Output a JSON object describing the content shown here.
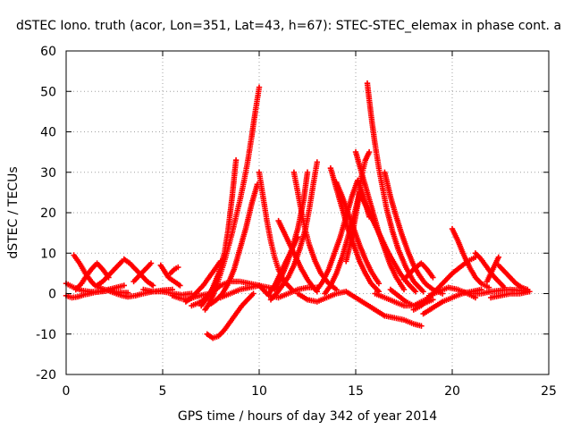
{
  "chart_data": {
    "type": "scatter",
    "title": "dSTEC Iono. truth (acor, Lon=351, Lat=43, h=67): STEC-STEC_elemax in phase cont. a",
    "xlabel": "GPS time / hours of day 342 of year 2014",
    "ylabel": "dSTEC  / TECUs",
    "xlim": [
      0,
      25
    ],
    "ylim": [
      -20,
      60
    ],
    "xticks": [
      0,
      5,
      10,
      15,
      20,
      25
    ],
    "yticks": [
      -20,
      -10,
      0,
      10,
      20,
      30,
      40,
      50,
      60
    ],
    "grid": true,
    "marker": "+",
    "color": "#ff0000",
    "series": [
      {
        "x": [
          0.0,
          0.4,
          0.8,
          1.2,
          1.6,
          2.0,
          2.4
        ],
        "y": [
          2.5,
          1.5,
          0.8,
          0.5,
          0.4,
          0.6,
          1.0
        ]
      },
      {
        "x": [
          0.0,
          0.3,
          0.6,
          1.0,
          1.5,
          2.0,
          2.6,
          3.0
        ],
        "y": [
          -0.5,
          -1.0,
          -0.8,
          -0.2,
          0.3,
          0.8,
          1.5,
          2.0
        ]
      },
      {
        "x": [
          0.4,
          0.7,
          1.0,
          1.3,
          1.5,
          1.7,
          2.0,
          2.4,
          2.8,
          3.2
        ],
        "y": [
          9.5,
          7.5,
          5.0,
          3.0,
          2.0,
          1.5,
          1.0,
          0.5,
          0.3,
          0.2
        ]
      },
      {
        "x": [
          0.5,
          0.8,
          1.0,
          1.3,
          1.6,
          1.9,
          2.2
        ],
        "y": [
          1.0,
          2.5,
          4.0,
          6.0,
          7.5,
          6.0,
          4.0
        ]
      },
      {
        "x": [
          1.6,
          1.9,
          2.2,
          2.5,
          2.7,
          2.9
        ],
        "y": [
          2.0,
          3.0,
          4.5,
          6.0,
          7.0,
          8.0
        ]
      },
      {
        "x": [
          2.3,
          2.6,
          2.9,
          3.2,
          3.6,
          4.0,
          4.5,
          5.0,
          5.5
        ],
        "y": [
          0.5,
          0.0,
          -0.5,
          -0.8,
          -0.5,
          0.0,
          0.5,
          0.8,
          1.0
        ]
      },
      {
        "x": [
          3.0,
          3.3,
          3.6,
          3.9,
          4.2,
          4.5
        ],
        "y": [
          8.5,
          7.5,
          6.0,
          4.5,
          3.0,
          2.0
        ]
      },
      {
        "x": [
          3.5,
          3.8,
          4.1,
          4.4
        ],
        "y": [
          3.0,
          4.5,
          6.0,
          7.5
        ]
      },
      {
        "x": [
          4.0,
          4.5,
          5.0,
          5.5,
          6.0,
          6.5
        ],
        "y": [
          1.0,
          0.5,
          0.5,
          0.0,
          -0.3,
          0.0
        ]
      },
      {
        "x": [
          4.9,
          5.1,
          5.3,
          5.6,
          5.9
        ],
        "y": [
          7.0,
          5.5,
          4.0,
          3.0,
          2.0
        ]
      },
      {
        "x": [
          5.4,
          5.6,
          5.8
        ],
        "y": [
          5.0,
          6.0,
          6.5
        ]
      },
      {
        "x": [
          5.5,
          5.9,
          6.3,
          6.7,
          7.1,
          7.5
        ],
        "y": [
          -0.5,
          -1.2,
          -1.5,
          -0.8,
          -0.3,
          0.0
        ]
      },
      {
        "x": [
          6.2,
          6.5,
          6.8,
          7.1,
          7.4,
          7.7,
          8.0
        ],
        "y": [
          -2.0,
          -1.0,
          0.5,
          2.0,
          4.0,
          6.0,
          8.0
        ]
      },
      {
        "x": [
          6.5,
          7.0,
          7.5,
          8.0,
          8.5,
          9.0,
          9.5,
          10.0
        ],
        "y": [
          -3.0,
          -2.0,
          0.0,
          2.0,
          3.0,
          3.0,
          2.5,
          2.0
        ]
      },
      {
        "x": [
          7.2,
          7.4,
          7.6,
          7.8,
          8.0,
          8.2,
          8.4,
          8.6,
          8.8,
          9.0,
          9.2,
          9.4,
          9.6,
          9.8,
          10.0
        ],
        "y": [
          -4.0,
          -2.5,
          -0.5,
          2.0,
          5.0,
          8.0,
          11.5,
          15.0,
          19.0,
          23.0,
          27.5,
          32.5,
          38.5,
          45.0,
          51.0
        ]
      },
      {
        "x": [
          7.0,
          7.3,
          7.6,
          7.9,
          8.2,
          8.4,
          8.6,
          8.8
        ],
        "y": [
          -3.0,
          -1.0,
          1.5,
          5.0,
          10.0,
          16.0,
          24.0,
          33.0
        ]
      },
      {
        "x": [
          7.5,
          7.8,
          8.1,
          8.4,
          8.7,
          9.0,
          9.3,
          9.6,
          9.9
        ],
        "y": [
          -2.5,
          -1.5,
          0.0,
          2.5,
          6.0,
          11.0,
          16.0,
          22.0,
          27.0
        ]
      },
      {
        "x": [
          7.3,
          7.6,
          7.9,
          8.2,
          8.5,
          8.8,
          9.1,
          9.4,
          9.7
        ],
        "y": [
          -10.0,
          -11.0,
          -10.5,
          -9.0,
          -7.0,
          -5.0,
          -3.0,
          -1.5,
          0.0
        ]
      },
      {
        "x": [
          8.0,
          8.5,
          9.0,
          9.5,
          10.0,
          10.5,
          11.0
        ],
        "y": [
          -1.0,
          0.0,
          1.0,
          1.5,
          2.0,
          1.5,
          1.0
        ]
      },
      {
        "x": [
          10.0,
          10.2,
          10.4,
          10.6,
          10.8,
          11.0,
          11.3,
          11.7
        ],
        "y": [
          30.0,
          24.0,
          18.0,
          13.0,
          9.0,
          6.0,
          3.0,
          1.0
        ]
      },
      {
        "x": [
          10.0,
          10.5,
          11.0,
          11.5,
          12.0,
          12.5,
          13.0
        ],
        "y": [
          2.0,
          -0.5,
          -1.0,
          0.0,
          1.0,
          1.5,
          1.5
        ]
      },
      {
        "x": [
          10.5,
          10.8,
          11.1,
          11.4,
          11.7,
          12.0
        ],
        "y": [
          0.0,
          2.0,
          5.0,
          8.0,
          11.0,
          14.0
        ]
      },
      {
        "x": [
          11.0,
          11.3,
          11.6,
          11.9,
          12.2,
          12.5,
          12.8,
          13.0
        ],
        "y": [
          18.0,
          15.0,
          12.0,
          9.0,
          6.0,
          3.5,
          1.5,
          0.5
        ]
      },
      {
        "x": [
          10.6,
          10.9,
          11.2,
          11.5,
          11.8,
          12.1,
          12.4,
          12.6,
          12.8,
          13.0
        ],
        "y": [
          -1.5,
          0.0,
          2.0,
          4.0,
          7.0,
          11.0,
          16.0,
          21.0,
          27.0,
          32.5
        ]
      },
      {
        "x": [
          10.8,
          11.1,
          11.4,
          11.7,
          12.0,
          12.3,
          12.5
        ],
        "y": [
          1.0,
          3.5,
          7.0,
          11.0,
          16.0,
          23.0,
          30.0
        ]
      },
      {
        "x": [
          11.8,
          12.0,
          12.2,
          12.4,
          12.6,
          12.9,
          13.2,
          13.6,
          14.0
        ],
        "y": [
          30.0,
          25.0,
          20.0,
          15.5,
          12.0,
          8.0,
          5.0,
          2.5,
          1.0
        ]
      },
      {
        "x": [
          12.0,
          12.5,
          13.0,
          13.5,
          14.0,
          14.5,
          15.0,
          15.5,
          16.0,
          16.5,
          17.0,
          17.5,
          18.0,
          18.4
        ],
        "y": [
          0.0,
          -1.5,
          -2.0,
          -1.0,
          0.0,
          0.5,
          -1.0,
          -2.5,
          -4.0,
          -5.5,
          -6.0,
          -6.5,
          -7.5,
          -8.0
        ]
      },
      {
        "x": [
          13.0,
          13.3,
          13.6,
          13.9,
          14.2,
          14.5,
          14.8,
          15.1,
          15.4,
          15.7
        ],
        "y": [
          1.0,
          3.0,
          6.0,
          10.0,
          14.0,
          19.0,
          24.0,
          28.0,
          24.0,
          19.0
        ]
      },
      {
        "x": [
          13.4,
          13.7,
          14.0,
          14.3,
          14.6,
          14.9,
          15.2,
          15.5
        ],
        "y": [
          0.0,
          2.0,
          5.0,
          9.0,
          14.0,
          19.0,
          25.0,
          22.0
        ]
      },
      {
        "x": [
          13.7,
          14.0,
          14.3,
          14.6,
          14.9,
          15.2,
          15.5,
          15.8,
          16.2
        ],
        "y": [
          31.0,
          26.0,
          21.0,
          16.0,
          12.0,
          8.0,
          5.0,
          2.5,
          0.5
        ]
      },
      {
        "x": [
          14.0,
          14.3,
          14.6,
          14.9,
          15.2,
          15.5,
          15.8,
          16.2
        ],
        "y": [
          27.5,
          24.0,
          20.0,
          16.0,
          12.0,
          8.5,
          5.5,
          2.5
        ]
      },
      {
        "x": [
          14.5,
          14.8,
          15.1,
          15.3,
          15.5,
          15.7
        ],
        "y": [
          8.0,
          14.0,
          22.0,
          29.0,
          33.0,
          35.0
        ]
      },
      {
        "x": [
          15.0,
          15.3,
          15.6,
          15.9,
          16.2,
          16.5,
          16.8,
          17.1,
          17.5
        ],
        "y": [
          35.0,
          30.0,
          25.0,
          20.0,
          15.0,
          11.0,
          7.0,
          4.0,
          1.0
        ]
      },
      {
        "x": [
          15.6,
          15.8,
          16.0,
          16.2,
          16.4,
          16.6,
          16.9,
          17.2,
          17.6,
          18.0,
          18.5
        ],
        "y": [
          52.0,
          44.0,
          37.0,
          31.0,
          26.0,
          21.0,
          15.5,
          11.0,
          6.5,
          3.0,
          0.5
        ]
      },
      {
        "x": [
          15.2,
          15.5,
          15.8,
          16.1,
          16.4,
          16.7,
          17.0,
          17.3,
          17.7,
          18.1
        ],
        "y": [
          25.0,
          22.0,
          19.0,
          16.0,
          13.0,
          10.0,
          7.5,
          5.0,
          2.5,
          0.5
        ]
      },
      {
        "x": [
          16.5,
          16.8,
          17.1,
          17.4,
          17.7,
          18.0,
          18.3,
          18.6,
          19.0,
          19.5
        ],
        "y": [
          30.0,
          24.0,
          19.0,
          14.5,
          10.5,
          7.0,
          4.5,
          2.5,
          1.0,
          0.0
        ]
      },
      {
        "x": [
          16.0,
          16.5,
          17.0,
          17.5,
          18.0,
          18.5,
          19.0
        ],
        "y": [
          0.0,
          -1.0,
          -2.0,
          -3.0,
          -3.0,
          -2.5,
          -1.5
        ]
      },
      {
        "x": [
          16.8,
          17.2,
          17.6,
          18.0,
          18.4,
          18.8
        ],
        "y": [
          1.0,
          -0.5,
          -2.0,
          -3.0,
          -2.0,
          -1.0
        ]
      },
      {
        "x": [
          17.5,
          17.8,
          18.1,
          18.4,
          18.7,
          19.0
        ],
        "y": [
          3.5,
          5.0,
          6.5,
          7.5,
          6.0,
          4.0
        ]
      },
      {
        "x": [
          18.0,
          18.4,
          18.8,
          19.2,
          19.6,
          20.0,
          20.4,
          20.8,
          21.2
        ],
        "y": [
          -4.0,
          -3.0,
          -1.0,
          1.0,
          3.0,
          5.0,
          6.5,
          8.0,
          9.0
        ]
      },
      {
        "x": [
          18.5,
          19.0,
          19.5,
          20.0,
          20.5,
          21.0,
          21.5
        ],
        "y": [
          -5.0,
          -3.5,
          -2.0,
          -1.0,
          0.0,
          0.5,
          1.0
        ]
      },
      {
        "x": [
          18.8,
          19.3,
          19.8,
          20.3,
          20.8,
          21.2
        ],
        "y": [
          -0.5,
          0.5,
          1.5,
          1.0,
          0.0,
          -1.0
        ]
      },
      {
        "x": [
          20.0,
          20.3,
          20.6,
          20.9,
          21.2,
          21.5,
          21.9
        ],
        "y": [
          16.0,
          13.0,
          9.5,
          6.5,
          4.0,
          2.5,
          1.5
        ]
      },
      {
        "x": [
          20.5,
          21.0,
          21.5,
          22.0,
          22.5,
          23.0,
          23.5,
          24.0
        ],
        "y": [
          0.5,
          0.0,
          0.0,
          0.5,
          0.8,
          1.0,
          0.8,
          0.5
        ]
      },
      {
        "x": [
          21.2,
          21.5,
          21.8,
          22.1,
          22.4,
          22.7
        ],
        "y": [
          10.0,
          8.5,
          6.5,
          4.5,
          3.0,
          1.5
        ]
      },
      {
        "x": [
          21.8,
          22.1,
          22.4
        ],
        "y": [
          3.0,
          6.0,
          9.0
        ]
      },
      {
        "x": [
          22.4,
          22.7,
          23.0,
          23.3,
          23.6,
          23.9
        ],
        "y": [
          7.0,
          5.5,
          4.0,
          2.5,
          1.5,
          1.0
        ]
      },
      {
        "x": [
          22.0,
          22.5,
          23.0,
          23.5,
          24.0
        ],
        "y": [
          -1.0,
          -0.5,
          0.0,
          0.0,
          0.5
        ]
      }
    ]
  }
}
